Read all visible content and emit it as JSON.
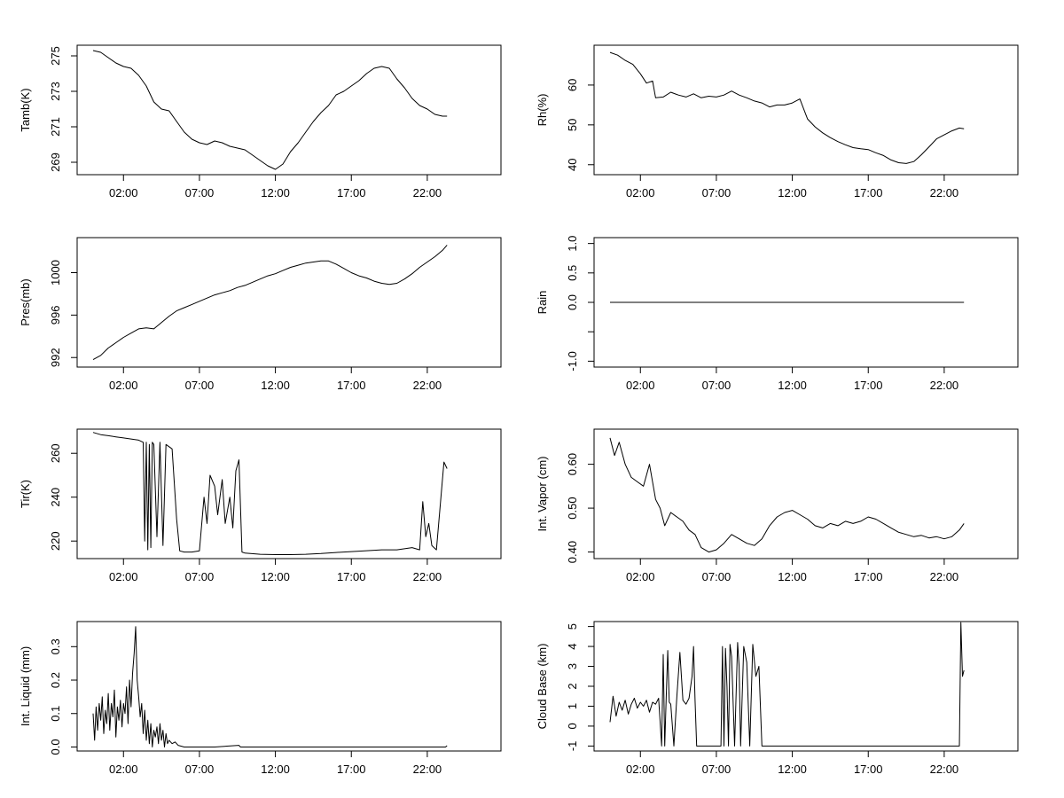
{
  "chart_data": [
    {
      "type": "line",
      "ylabel": "Tamb(K)",
      "xlim": [
        0,
        25.8
      ],
      "ylim": [
        268.3,
        275.6
      ],
      "xticks": [
        2,
        7,
        12,
        17,
        22
      ],
      "xtick_labels": [
        "02:00",
        "07:00",
        "12:00",
        "17:00",
        "22:00"
      ],
      "yticks": [
        269,
        271,
        273,
        275
      ],
      "ytick_labels": [
        "269",
        "271",
        "273",
        "275"
      ],
      "x": [
        0.0,
        0.5,
        1.0,
        1.5,
        2.0,
        2.5,
        3.0,
        3.5,
        4.0,
        4.5,
        5.0,
        5.5,
        6.0,
        6.5,
        7.0,
        7.5,
        8.0,
        8.5,
        9.0,
        9.5,
        10.0,
        10.5,
        11.0,
        11.5,
        12.0,
        12.5,
        13.0,
        13.5,
        14.0,
        14.5,
        15.0,
        15.5,
        16.0,
        16.5,
        17.0,
        17.5,
        18.0,
        18.5,
        19.0,
        19.5,
        20.0,
        20.5,
        21.0,
        21.5,
        22.0,
        22.5,
        23.0,
        23.3
      ],
      "values": [
        275.3,
        275.2,
        274.9,
        274.6,
        274.4,
        274.3,
        273.9,
        273.3,
        272.4,
        272.0,
        271.9,
        271.3,
        270.7,
        270.3,
        270.1,
        270.0,
        270.2,
        270.1,
        269.9,
        269.8,
        269.7,
        269.4,
        269.1,
        268.8,
        268.6,
        268.9,
        269.6,
        270.1,
        270.7,
        271.3,
        271.8,
        272.2,
        272.8,
        273.0,
        273.3,
        273.6,
        274.0,
        274.3,
        274.4,
        274.3,
        273.7,
        273.2,
        272.6,
        272.2,
        272.0,
        271.7,
        271.6,
        271.6
      ]
    },
    {
      "type": "line",
      "ylabel": "Rh(%)",
      "xlim": [
        0,
        25.8
      ],
      "ylim": [
        37.5,
        70
      ],
      "xticks": [
        2,
        7,
        12,
        17,
        22
      ],
      "xtick_labels": [
        "02:00",
        "07:00",
        "12:00",
        "17:00",
        "22:00"
      ],
      "yticks": [
        40,
        50,
        60
      ],
      "ytick_labels": [
        "40",
        "50",
        "60"
      ],
      "x": [
        0.0,
        0.5,
        1.0,
        1.5,
        2.0,
        2.4,
        2.8,
        3.0,
        3.5,
        4.0,
        4.5,
        5.0,
        5.5,
        6.0,
        6.5,
        7.0,
        7.5,
        8.0,
        8.5,
        9.0,
        9.5,
        10.0,
        10.5,
        11.0,
        11.5,
        12.0,
        12.5,
        13.0,
        13.5,
        14.0,
        14.5,
        15.0,
        15.5,
        16.0,
        16.5,
        17.0,
        17.5,
        18.0,
        18.5,
        19.0,
        19.5,
        20.0,
        20.5,
        21.0,
        21.5,
        22.0,
        22.5,
        23.0,
        23.3
      ],
      "values": [
        68.2,
        67.5,
        66.2,
        65.2,
        62.8,
        60.5,
        61.0,
        56.8,
        57.0,
        58.2,
        57.5,
        57.0,
        57.8,
        56.8,
        57.2,
        57.0,
        57.5,
        58.5,
        57.5,
        56.8,
        56.0,
        55.5,
        54.5,
        55.0,
        55.0,
        55.5,
        56.5,
        51.5,
        49.5,
        48.0,
        46.8,
        45.8,
        45.0,
        44.3,
        44.0,
        43.8,
        43.0,
        42.3,
        41.2,
        40.5,
        40.3,
        40.8,
        42.5,
        44.5,
        46.5,
        47.5,
        48.5,
        49.2,
        49.0
      ]
    },
    {
      "type": "line",
      "ylabel": "Pres(mb)",
      "xlim": [
        0,
        25.8
      ],
      "ylim": [
        991.1,
        1003.3
      ],
      "xticks": [
        2,
        7,
        12,
        17,
        22
      ],
      "xtick_labels": [
        "02:00",
        "07:00",
        "12:00",
        "17:00",
        "22:00"
      ],
      "yticks": [
        992,
        996,
        1000
      ],
      "ytick_labels": [
        "992",
        "996",
        "1000"
      ],
      "x": [
        0.0,
        0.5,
        1.0,
        1.5,
        2.0,
        2.5,
        3.0,
        3.5,
        4.0,
        4.5,
        5.0,
        5.5,
        6.0,
        6.5,
        7.0,
        7.5,
        8.0,
        8.5,
        9.0,
        9.5,
        10.0,
        10.5,
        11.0,
        11.5,
        12.0,
        12.5,
        13.0,
        13.5,
        14.0,
        14.5,
        15.0,
        15.5,
        16.0,
        16.5,
        17.0,
        17.5,
        18.0,
        18.5,
        19.0,
        19.5,
        20.0,
        20.5,
        21.0,
        21.5,
        22.0,
        22.5,
        23.0,
        23.3
      ],
      "values": [
        991.8,
        992.2,
        992.9,
        993.4,
        993.9,
        994.3,
        994.7,
        994.8,
        994.7,
        995.3,
        995.9,
        996.4,
        996.7,
        997.0,
        997.3,
        997.6,
        997.9,
        998.1,
        998.3,
        998.6,
        998.8,
        999.1,
        999.4,
        999.7,
        999.9,
        1000.2,
        1000.5,
        1000.7,
        1000.9,
        1001.0,
        1001.1,
        1001.1,
        1000.8,
        1000.4,
        1000.0,
        999.7,
        999.5,
        999.2,
        999.0,
        998.9,
        999.0,
        999.4,
        999.9,
        1000.5,
        1001.0,
        1001.5,
        1002.1,
        1002.6
      ]
    },
    {
      "type": "line",
      "ylabel": "Rain",
      "xlim": [
        0,
        25.8
      ],
      "ylim": [
        -1.1,
        1.1
      ],
      "xticks": [
        2,
        7,
        12,
        17,
        22
      ],
      "xtick_labels": [
        "02:00",
        "07:00",
        "12:00",
        "17:00",
        "22:00"
      ],
      "yticks": [
        -1.0,
        -0.5,
        0.0,
        0.5,
        1.0
      ],
      "ytick_labels": [
        "-1.0",
        "",
        "0.0",
        "0.5",
        "1.0"
      ],
      "x": [
        0.0,
        23.3
      ],
      "values": [
        0.0,
        0.0
      ]
    },
    {
      "type": "line",
      "ylabel": "Tir(K)",
      "xlim": [
        0,
        25.8
      ],
      "ylim": [
        212,
        271
      ],
      "xticks": [
        2,
        7,
        12,
        17,
        22
      ],
      "xtick_labels": [
        "02:00",
        "07:00",
        "12:00",
        "17:00",
        "22:00"
      ],
      "yticks": [
        220,
        240,
        260
      ],
      "ytick_labels": [
        "220",
        "240",
        "260"
      ],
      "x": [
        0.0,
        0.5,
        1.0,
        1.5,
        2.0,
        2.5,
        3.0,
        3.3,
        3.4,
        3.5,
        3.6,
        3.7,
        3.8,
        3.9,
        4.0,
        4.2,
        4.4,
        4.6,
        4.8,
        5.0,
        5.2,
        5.5,
        5.7,
        6.0,
        6.5,
        7.0,
        7.3,
        7.5,
        7.7,
        8.0,
        8.2,
        8.5,
        8.7,
        9.0,
        9.2,
        9.4,
        9.6,
        9.8,
        10.0,
        11.0,
        12.0,
        13.0,
        14.0,
        15.0,
        16.0,
        17.0,
        18.0,
        19.0,
        20.0,
        20.5,
        21.0,
        21.5,
        21.7,
        21.9,
        22.1,
        22.3,
        22.6,
        22.9,
        23.1,
        23.3
      ],
      "values": [
        269.5,
        268.5,
        268.0,
        267.5,
        267.0,
        266.5,
        266.0,
        265.0,
        220.0,
        265.0,
        216.0,
        264.0,
        217.0,
        265.0,
        264.0,
        222.0,
        265.0,
        218.0,
        264.0,
        263.0,
        262.0,
        230.0,
        215.5,
        215.0,
        215.0,
        215.5,
        240.0,
        228.0,
        250.0,
        245.0,
        232.0,
        248.0,
        228.0,
        240.0,
        226.0,
        252.0,
        257.0,
        215.0,
        214.5,
        214.0,
        213.8,
        213.8,
        214.0,
        214.3,
        214.8,
        215.2,
        215.6,
        216.0,
        216.0,
        216.5,
        217.0,
        216.0,
        238.0,
        222.0,
        228.0,
        218.0,
        216.0,
        240.0,
        256.0,
        253.0
      ]
    },
    {
      "type": "line",
      "ylabel": "Int. Vapor (cm)",
      "xlim": [
        0,
        25.8
      ],
      "ylim": [
        0.385,
        0.68
      ],
      "xticks": [
        2,
        7,
        12,
        17,
        22
      ],
      "xtick_labels": [
        "02:00",
        "07:00",
        "12:00",
        "17:00",
        "22:00"
      ],
      "yticks": [
        0.4,
        0.5,
        0.6
      ],
      "ytick_labels": [
        "0.40",
        "0.50",
        "0.60"
      ],
      "x": [
        0.0,
        0.3,
        0.6,
        1.0,
        1.4,
        1.8,
        2.2,
        2.6,
        3.0,
        3.3,
        3.6,
        4.0,
        4.4,
        4.8,
        5.2,
        5.6,
        6.0,
        6.5,
        7.0,
        7.5,
        8.0,
        8.5,
        9.0,
        9.5,
        10.0,
        10.5,
        11.0,
        11.5,
        12.0,
        12.5,
        13.0,
        13.5,
        14.0,
        14.5,
        15.0,
        15.5,
        16.0,
        16.5,
        17.0,
        17.5,
        18.0,
        18.5,
        19.0,
        19.5,
        20.0,
        20.5,
        21.0,
        21.5,
        22.0,
        22.5,
        23.0,
        23.3
      ],
      "values": [
        0.66,
        0.62,
        0.65,
        0.6,
        0.57,
        0.56,
        0.55,
        0.6,
        0.52,
        0.5,
        0.46,
        0.49,
        0.48,
        0.47,
        0.45,
        0.44,
        0.41,
        0.4,
        0.405,
        0.42,
        0.44,
        0.43,
        0.42,
        0.415,
        0.43,
        0.46,
        0.48,
        0.49,
        0.495,
        0.485,
        0.475,
        0.46,
        0.455,
        0.465,
        0.46,
        0.47,
        0.465,
        0.47,
        0.48,
        0.475,
        0.465,
        0.455,
        0.445,
        0.44,
        0.435,
        0.438,
        0.432,
        0.435,
        0.43,
        0.435,
        0.45,
        0.465
      ]
    },
    {
      "type": "line",
      "ylabel": "Int. Liquid (mm)",
      "xlim": [
        0,
        25.8
      ],
      "ylim": [
        -0.012,
        0.375
      ],
      "xticks": [
        2,
        7,
        12,
        17,
        22
      ],
      "xtick_labels": [
        "02:00",
        "07:00",
        "12:00",
        "17:00",
        "22:00"
      ],
      "yticks": [
        0.0,
        0.1,
        0.2,
        0.3
      ],
      "ytick_labels": [
        "0.0",
        "0.1",
        "0.2",
        "0.3"
      ],
      "x": [
        0.0,
        0.1,
        0.2,
        0.3,
        0.4,
        0.5,
        0.6,
        0.7,
        0.8,
        0.9,
        1.0,
        1.1,
        1.2,
        1.3,
        1.4,
        1.5,
        1.6,
        1.7,
        1.8,
        1.9,
        2.0,
        2.1,
        2.2,
        2.3,
        2.4,
        2.5,
        2.6,
        2.7,
        2.8,
        2.9,
        3.0,
        3.1,
        3.2,
        3.3,
        3.4,
        3.5,
        3.6,
        3.7,
        3.8,
        3.9,
        4.0,
        4.1,
        4.2,
        4.3,
        4.4,
        4.5,
        4.6,
        4.7,
        4.8,
        4.9,
        5.0,
        5.2,
        5.4,
        5.6,
        6.0,
        8.0,
        9.6,
        9.7,
        12.0,
        16.0,
        20.0,
        23.2,
        23.3
      ],
      "values": [
        0.1,
        0.02,
        0.12,
        0.05,
        0.13,
        0.08,
        0.15,
        0.04,
        0.11,
        0.07,
        0.16,
        0.05,
        0.13,
        0.09,
        0.17,
        0.03,
        0.12,
        0.08,
        0.14,
        0.06,
        0.13,
        0.1,
        0.18,
        0.07,
        0.2,
        0.12,
        0.22,
        0.28,
        0.36,
        0.2,
        0.15,
        0.09,
        0.13,
        0.04,
        0.11,
        0.02,
        0.08,
        0.01,
        0.07,
        0.0,
        0.05,
        0.03,
        0.06,
        0.01,
        0.07,
        0.02,
        0.05,
        0.0,
        0.04,
        0.01,
        0.02,
        0.01,
        0.015,
        0.005,
        0.0,
        0.0,
        0.005,
        0.0,
        0.0,
        0.0,
        0.0,
        0.0,
        0.004
      ]
    },
    {
      "type": "line",
      "ylabel": "Cloud Base (km)",
      "xlim": [
        0,
        25.8
      ],
      "ylim": [
        -1.25,
        5.25
      ],
      "xticks": [
        2,
        7,
        12,
        17,
        22
      ],
      "xtick_labels": [
        "02:00",
        "07:00",
        "12:00",
        "17:00",
        "22:00"
      ],
      "yticks": [
        -1,
        0,
        1,
        2,
        3,
        4,
        5
      ],
      "ytick_labels": [
        "-1",
        "0",
        "1",
        "2",
        "3",
        "4",
        "5"
      ],
      "x": [
        0.0,
        0.2,
        0.4,
        0.6,
        0.8,
        1.0,
        1.2,
        1.4,
        1.6,
        1.8,
        2.0,
        2.2,
        2.4,
        2.6,
        2.8,
        3.0,
        3.2,
        3.4,
        3.5,
        3.6,
        3.7,
        3.8,
        3.9,
        4.0,
        4.2,
        4.4,
        4.6,
        4.8,
        5.0,
        5.2,
        5.4,
        5.5,
        5.6,
        5.7,
        5.8,
        6.0,
        7.0,
        7.3,
        7.4,
        7.5,
        7.6,
        7.7,
        7.8,
        7.9,
        8.0,
        8.2,
        8.4,
        8.5,
        8.6,
        8.8,
        9.0,
        9.2,
        9.4,
        9.6,
        9.8,
        10.0,
        12.0,
        15.0,
        18.0,
        21.0,
        23.0,
        23.1,
        23.2,
        23.3
      ],
      "values": [
        0.2,
        1.5,
        0.5,
        1.2,
        0.8,
        1.3,
        0.6,
        1.1,
        1.4,
        0.9,
        1.2,
        1.0,
        1.3,
        0.7,
        1.2,
        1.1,
        1.4,
        -1.0,
        3.6,
        -1.0,
        1.5,
        3.8,
        1.2,
        1.1,
        -1.0,
        1.5,
        3.7,
        1.3,
        1.1,
        1.4,
        2.5,
        4.0,
        1.3,
        -1.0,
        -1.0,
        -1.0,
        -1.0,
        -1.0,
        4.0,
        -1.0,
        3.9,
        2.0,
        -1.0,
        4.1,
        3.5,
        -1.0,
        4.2,
        3.0,
        -1.0,
        4.0,
        3.2,
        -1.0,
        4.1,
        2.5,
        3.0,
        -1.0,
        -1.0,
        -1.0,
        -1.0,
        -1.0,
        -1.0,
        5.2,
        2.5,
        2.8
      ]
    }
  ]
}
